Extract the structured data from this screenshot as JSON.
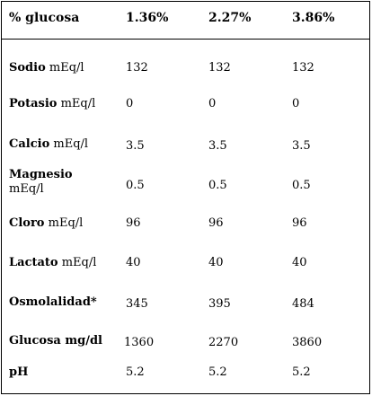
{
  "header": {
    "col0": "% glucosa",
    "col1": "1.36%",
    "col2": "2.27%",
    "col3": "3.86%"
  },
  "rows": [
    {
      "name": "Sodio",
      "unit": "mEq/l",
      "v1": "132",
      "v2": "132",
      "v3": "132"
    },
    {
      "name": "Potasio",
      "unit": "mEq/l",
      "v1": "0",
      "v2": "0",
      "v3": "0"
    },
    {
      "name": "Calcio",
      "unit": "mEq/l",
      "v1": "3.5",
      "v2": "3.5",
      "v3": "3.5"
    },
    {
      "name": "Magnesio",
      "unit": "mEq/l",
      "v1": "0.5",
      "v2": "0.5",
      "v3": "0.5"
    },
    {
      "name": "Cloro",
      "unit": "mEq/l",
      "v1": "96",
      "v2": "96",
      "v3": "96"
    },
    {
      "name": "Lactato",
      "unit": "mEq/l",
      "v1": "40",
      "v2": "40",
      "v3": "40"
    },
    {
      "name": "Osmolalidad*",
      "unit": "",
      "v1": "345",
      "v2": "395",
      "v3": "484"
    },
    {
      "name": "Glucosa mg/dl",
      "unit": "",
      "v1": "1360",
      "v2": "2270",
      "v3": "3860"
    },
    {
      "name": "pH",
      "unit": "",
      "v1": "5.2",
      "v2": "5.2",
      "v3": "5.2"
    }
  ]
}
